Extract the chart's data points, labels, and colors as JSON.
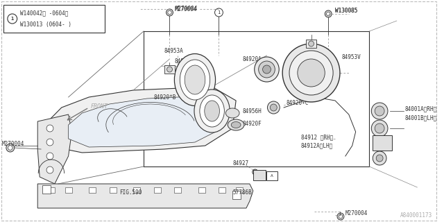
{
  "bg_color": "#ffffff",
  "line_color": "#333333",
  "text_color": "#333333",
  "gray_color": "#aaaaaa",
  "watermark": "A840001173",
  "legend_text1": "W140042〈 -0604〉",
  "legend_text2": "W130013 (0604- )",
  "legend_text1_raw": "W140042( -0604>",
  "legend_text2_raw": "W130013 (0604- )",
  "font_size": 6.5,
  "small_font": 5.5
}
